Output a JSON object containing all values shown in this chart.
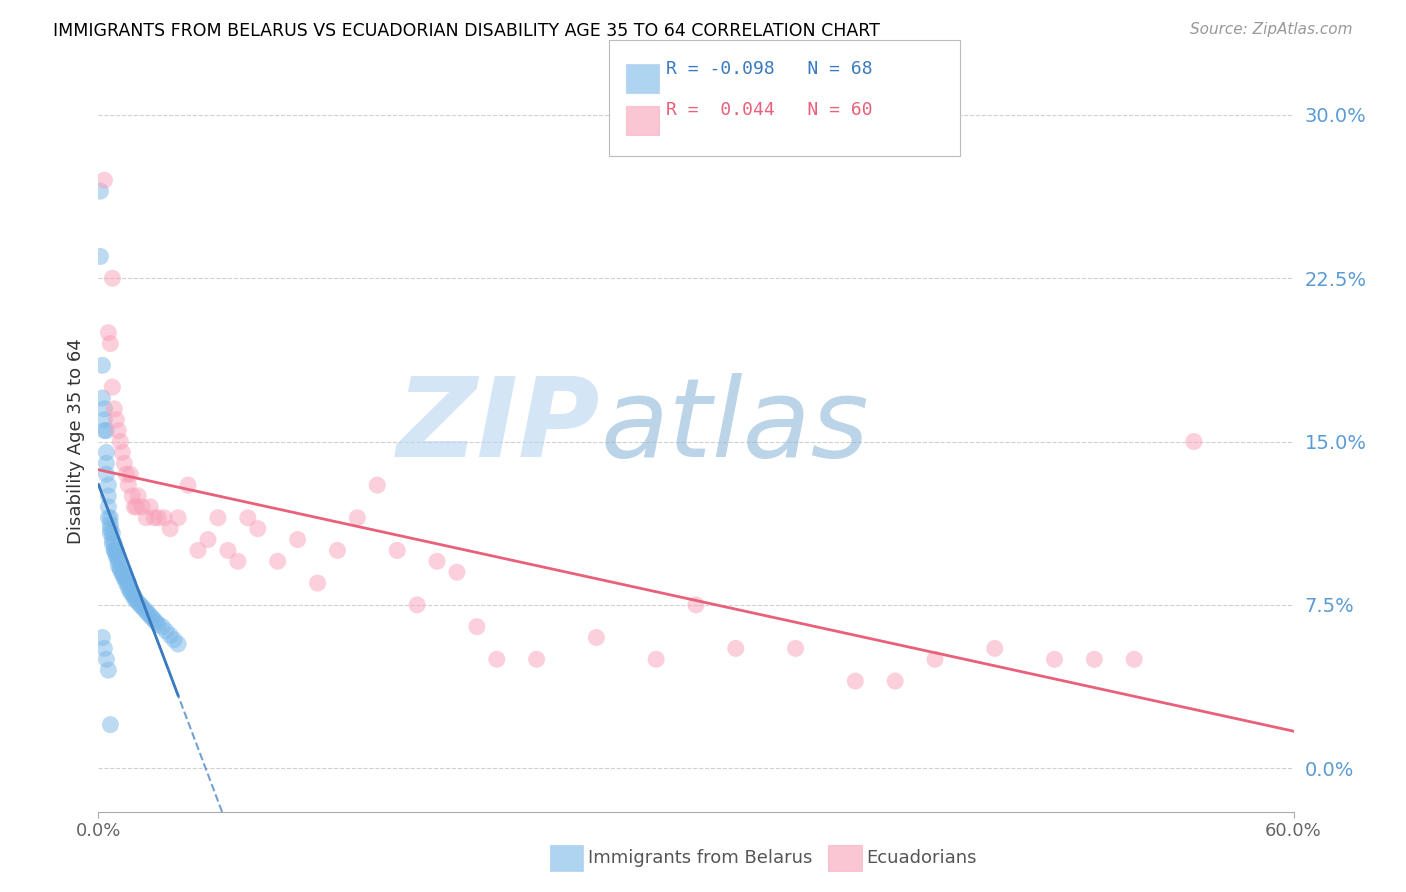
{
  "title": "IMMIGRANTS FROM BELARUS VS ECUADORIAN DISABILITY AGE 35 TO 64 CORRELATION CHART",
  "source": "Source: ZipAtlas.com",
  "ylabel": "Disability Age 35 to 64",
  "ytick_labels": [
    "0.0%",
    "7.5%",
    "15.0%",
    "22.5%",
    "30.0%"
  ],
  "ytick_values": [
    0.0,
    0.075,
    0.15,
    0.225,
    0.3
  ],
  "xlim": [
    0.0,
    0.6
  ],
  "ylim": [
    -0.02,
    0.32
  ],
  "blue_R": -0.098,
  "blue_N": 68,
  "pink_R": 0.044,
  "pink_N": 60,
  "blue_color": "#7ab8e8",
  "pink_color": "#f8a0b8",
  "blue_line_color": "#3a7abf",
  "pink_line_color": "#e8607a",
  "watermark_zip": "ZIP",
  "watermark_atlas": "atlas",
  "watermark_color_zip": "#b8d4f0",
  "watermark_color_atlas": "#90b8d8",
  "legend_label_blue": "Immigrants from Belarus",
  "legend_label_pink": "Ecuadorians",
  "blue_x": [
    0.001,
    0.001,
    0.002,
    0.002,
    0.003,
    0.003,
    0.003,
    0.004,
    0.004,
    0.004,
    0.004,
    0.005,
    0.005,
    0.005,
    0.005,
    0.006,
    0.006,
    0.006,
    0.006,
    0.007,
    0.007,
    0.007,
    0.008,
    0.008,
    0.008,
    0.009,
    0.009,
    0.009,
    0.01,
    0.01,
    0.01,
    0.011,
    0.011,
    0.012,
    0.012,
    0.013,
    0.013,
    0.014,
    0.014,
    0.015,
    0.015,
    0.016,
    0.016,
    0.017,
    0.018,
    0.018,
    0.019,
    0.02,
    0.021,
    0.022,
    0.023,
    0.024,
    0.025,
    0.026,
    0.027,
    0.028,
    0.029,
    0.03,
    0.032,
    0.034,
    0.036,
    0.038,
    0.04,
    0.002,
    0.003,
    0.004,
    0.005,
    0.006
  ],
  "blue_y": [
    0.265,
    0.235,
    0.185,
    0.17,
    0.165,
    0.16,
    0.155,
    0.155,
    0.145,
    0.14,
    0.135,
    0.13,
    0.125,
    0.12,
    0.115,
    0.115,
    0.112,
    0.11,
    0.108,
    0.108,
    0.105,
    0.103,
    0.103,
    0.1,
    0.1,
    0.1,
    0.098,
    0.097,
    0.097,
    0.095,
    0.093,
    0.092,
    0.091,
    0.09,
    0.089,
    0.088,
    0.087,
    0.087,
    0.085,
    0.085,
    0.083,
    0.082,
    0.081,
    0.08,
    0.079,
    0.078,
    0.077,
    0.076,
    0.075,
    0.074,
    0.073,
    0.072,
    0.071,
    0.07,
    0.069,
    0.068,
    0.067,
    0.066,
    0.065,
    0.063,
    0.061,
    0.059,
    0.057,
    0.06,
    0.055,
    0.05,
    0.045,
    0.02
  ],
  "pink_x": [
    0.003,
    0.005,
    0.006,
    0.007,
    0.008,
    0.009,
    0.01,
    0.011,
    0.012,
    0.013,
    0.014,
    0.015,
    0.016,
    0.017,
    0.018,
    0.019,
    0.02,
    0.022,
    0.024,
    0.026,
    0.028,
    0.03,
    0.033,
    0.036,
    0.04,
    0.045,
    0.05,
    0.055,
    0.06,
    0.065,
    0.07,
    0.075,
    0.08,
    0.09,
    0.1,
    0.11,
    0.12,
    0.13,
    0.14,
    0.15,
    0.16,
    0.17,
    0.18,
    0.19,
    0.2,
    0.22,
    0.25,
    0.28,
    0.3,
    0.32,
    0.35,
    0.38,
    0.4,
    0.42,
    0.45,
    0.48,
    0.5,
    0.52,
    0.007,
    0.55
  ],
  "pink_y": [
    0.27,
    0.2,
    0.195,
    0.175,
    0.165,
    0.16,
    0.155,
    0.15,
    0.145,
    0.14,
    0.135,
    0.13,
    0.135,
    0.125,
    0.12,
    0.12,
    0.125,
    0.12,
    0.115,
    0.12,
    0.115,
    0.115,
    0.115,
    0.11,
    0.115,
    0.13,
    0.1,
    0.105,
    0.115,
    0.1,
    0.095,
    0.115,
    0.11,
    0.095,
    0.105,
    0.085,
    0.1,
    0.115,
    0.13,
    0.1,
    0.075,
    0.095,
    0.09,
    0.065,
    0.05,
    0.05,
    0.06,
    0.05,
    0.075,
    0.055,
    0.055,
    0.04,
    0.04,
    0.05,
    0.055,
    0.05,
    0.05,
    0.05,
    0.225,
    0.15
  ]
}
